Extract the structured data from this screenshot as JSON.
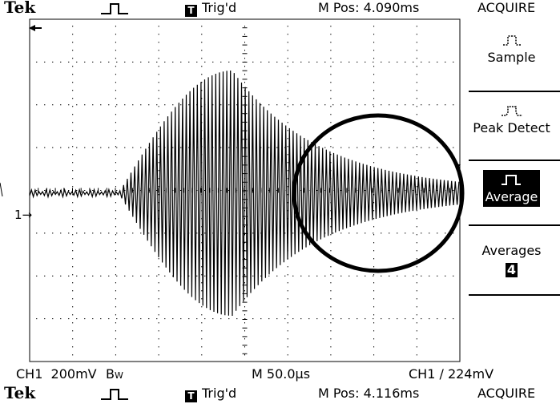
{
  "top_bar": {
    "brand": "Tek",
    "trigger_status": "Trig'd",
    "trigger_icon_letter": "T",
    "horizontal_position": "M Pos: 4.090ms"
  },
  "menu": {
    "title": "ACQUIRE",
    "items": [
      {
        "label": "Sample",
        "icon": "sample-waveform-icon",
        "selected": false
      },
      {
        "label": "Peak Detect",
        "icon": "peak-detect-waveform-icon",
        "selected": false
      },
      {
        "label": "Average",
        "icon": "average-waveform-icon",
        "selected": true
      }
    ],
    "averages": {
      "label": "Averages",
      "value": "4"
    }
  },
  "status_bar": {
    "channel_scale": "CH1  200mV",
    "bandwidth_flag": "B",
    "bandwidth_flag_sub": "W",
    "timebase": "M 50.0µs",
    "trigger_info": "CH1 ∕ 224mV"
  },
  "markers": {
    "channel_marker": "1→"
  },
  "bottom_bar": {
    "brand": "Tek",
    "trigger_status": "Trig'd",
    "trigger_icon_letter": "T",
    "horizontal_position": "M Pos: 4.116ms",
    "menu_title": "ACQUIRE"
  },
  "colors": {
    "background": "#ffffff",
    "foreground": "#000000"
  }
}
